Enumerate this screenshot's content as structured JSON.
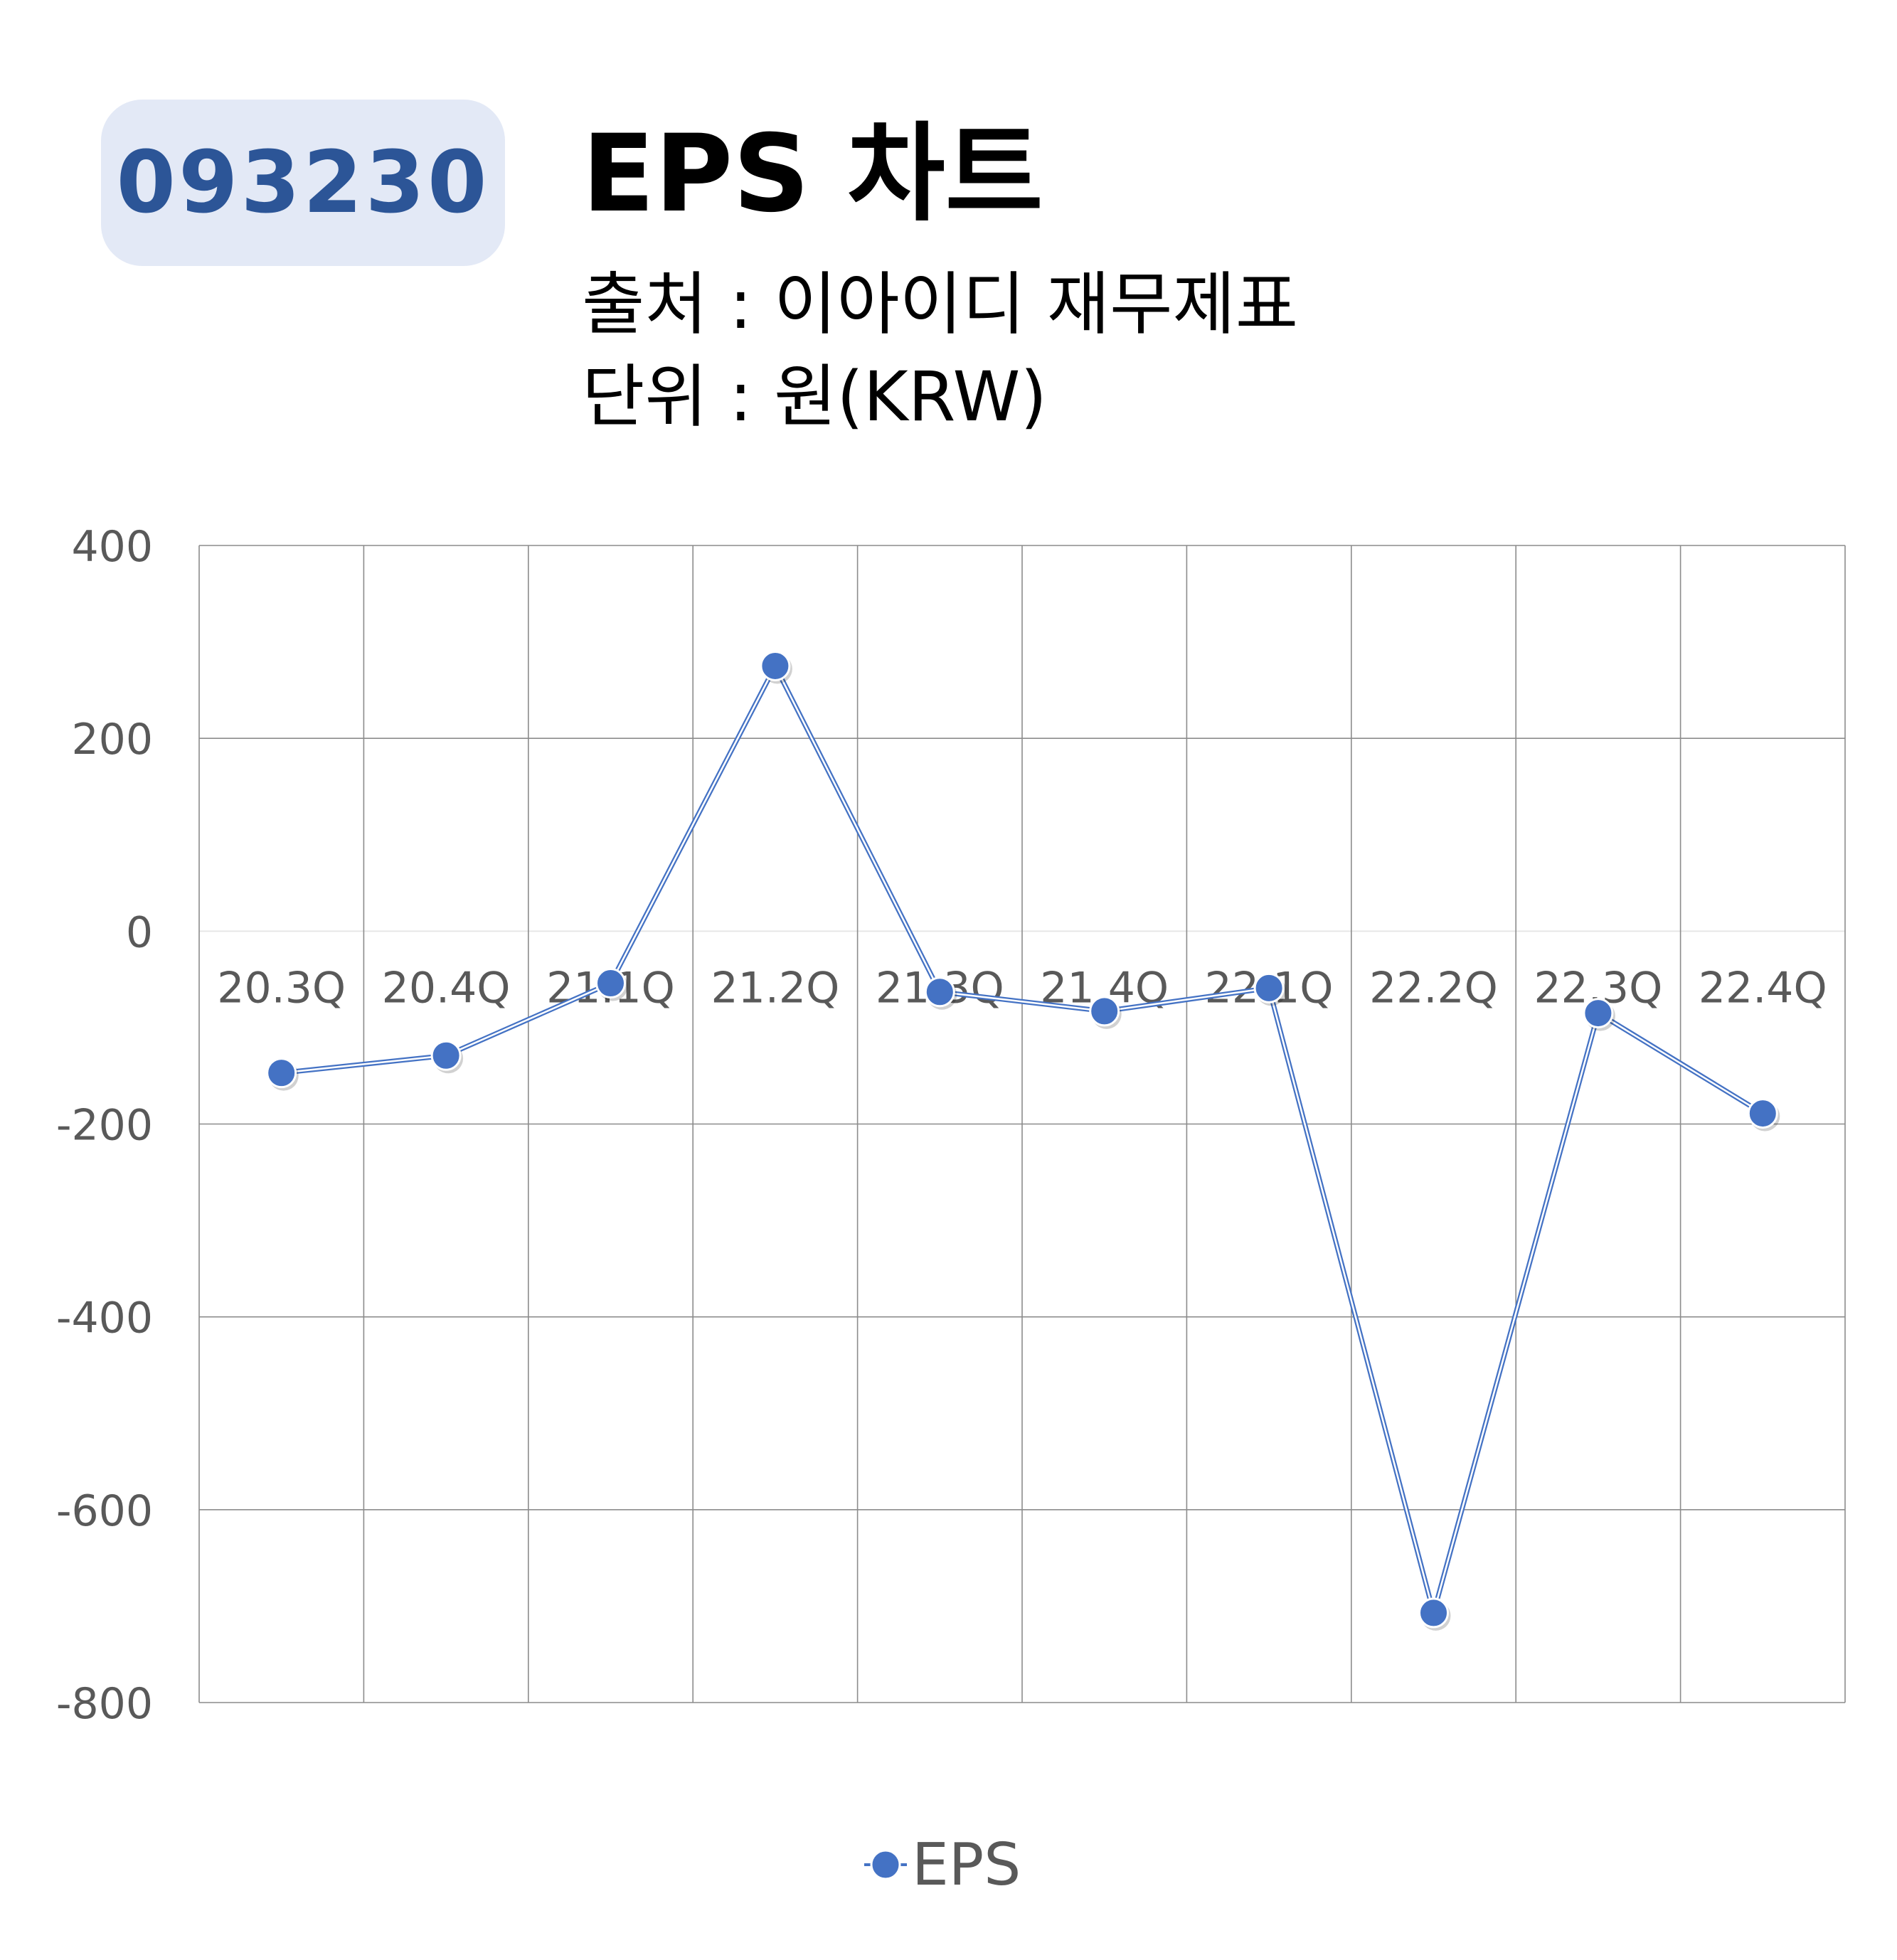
{
  "header": {
    "code": "093230",
    "title": "EPS 차트",
    "source_line": "출처 : 이아이디 재무제표",
    "unit_line": "단위 : 원(KRW)"
  },
  "chart_data": {
    "type": "line",
    "categories": [
      "20.3Q",
      "20.4Q",
      "21.1Q",
      "21.2Q",
      "21.3Q",
      "21.4Q",
      "22.1Q",
      "22.2Q",
      "22.3Q",
      "22.4Q"
    ],
    "series": [
      {
        "name": "EPS",
        "values": [
          -147,
          -129,
          -54,
          275,
          -63,
          -83,
          -59,
          -707,
          -85,
          -189
        ],
        "color": "#4472c4"
      }
    ],
    "ylim": [
      -800,
      400
    ],
    "yticks": [
      400,
      200,
      0,
      -200,
      -400,
      -600,
      -800
    ],
    "xlabel": "",
    "ylabel": "",
    "grid": true,
    "legend": "bottom-center"
  }
}
